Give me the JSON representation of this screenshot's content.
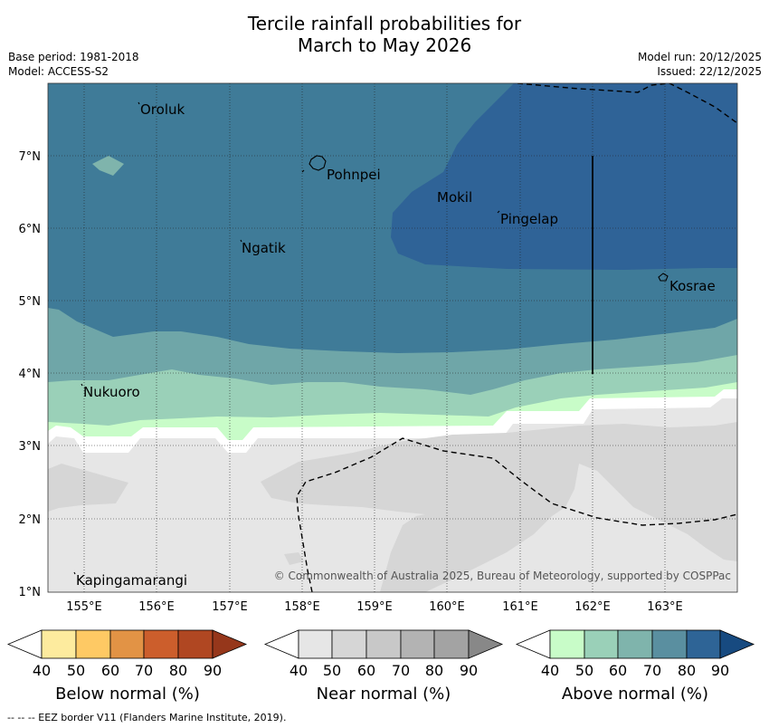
{
  "title": {
    "line1": "Tercile rainfall probabilities for",
    "line2": "March to May 2026"
  },
  "header": {
    "base_period": "Base period: 1981-2018",
    "model": "Model: ACCESS-S2",
    "model_run": "Model run: 20/12/2025",
    "issued": "Issued: 22/12/2025"
  },
  "map": {
    "lat_labels": [
      "7°N",
      "6°N",
      "5°N",
      "4°N",
      "3°N",
      "2°N",
      "1°N"
    ],
    "lon_labels": [
      "155°E",
      "156°E",
      "157°E",
      "158°E",
      "159°E",
      "160°E",
      "161°E",
      "162°E",
      "163°E"
    ],
    "places": {
      "oroluk": "Oroluk",
      "pohnpei": "Pohnpei",
      "mokil": "Mokil",
      "pingelap": "Pingelap",
      "ngatik": "Ngatik",
      "kosrae": "Kosrae",
      "nukuoro": "Nukuoro",
      "kapingamarangi": "Kapingamarangi"
    },
    "copyright": "© Commonwealth of Australia 2025, Bureau of Meteorology, supported by COSPPac"
  },
  "colorbars": {
    "below": {
      "title": "Below normal (%)",
      "ticks": [
        "40",
        "50",
        "60",
        "70",
        "80",
        "90"
      ],
      "colors": [
        "#ffffff",
        "#fdeb9e",
        "#fec964",
        "#e29345",
        "#cc5e2c",
        "#b04722",
        "#96371b"
      ]
    },
    "near": {
      "title": "Near normal (%)",
      "ticks": [
        "40",
        "50",
        "60",
        "70",
        "80",
        "90"
      ],
      "colors": [
        "#ffffff",
        "#e6e6e6",
        "#d6d6d6",
        "#c8c8c8",
        "#b3b3b3",
        "#a3a3a3",
        "#888888"
      ]
    },
    "above": {
      "title": "Above normal (%)",
      "ticks": [
        "40",
        "50",
        "60",
        "70",
        "80",
        "90"
      ],
      "colors": [
        "#ffffff",
        "#c8fcc8",
        "#9ad0b8",
        "#7fb4ac",
        "#5a8fa0",
        "#2e6496",
        "#174a80"
      ]
    }
  },
  "footer": {
    "legend_text": "--  --  -- EEZ border V11 (Flanders Marine Institute, 2019)."
  }
}
